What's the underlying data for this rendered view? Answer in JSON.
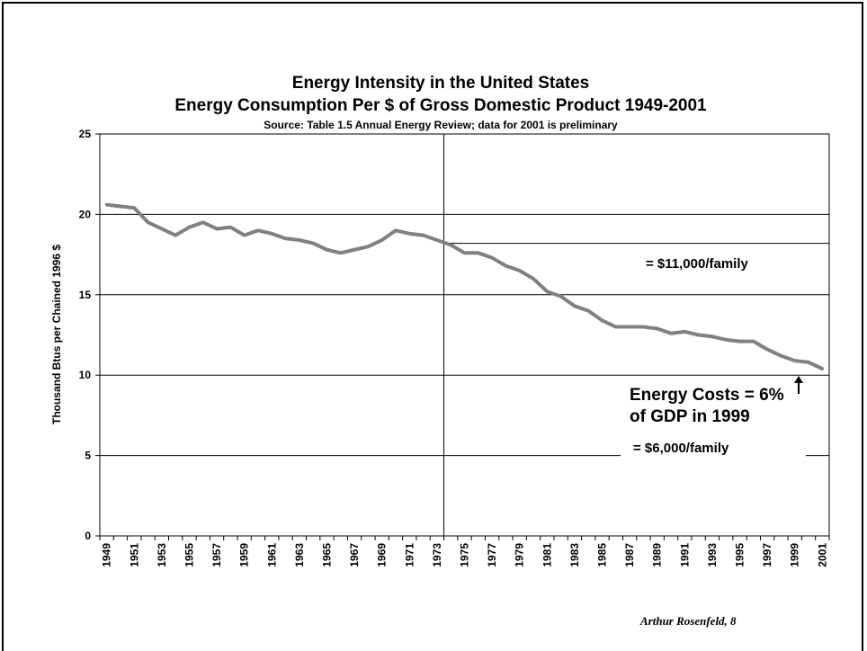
{
  "chart_data": {
    "type": "line",
    "title": "Energy Intensity in the United States",
    "subtitle": "Energy Consumption Per $ of Gross Domestic Product 1949-2001",
    "source": "Source: Table 1.5 Annual Energy Review; data for 2001 is preliminary",
    "xlabel": "",
    "ylabel": "Thousand Btus per Chained 1996 $",
    "ylim": [
      0,
      25
    ],
    "yticks": [
      "0",
      "5",
      "10",
      "15",
      "20",
      "25"
    ],
    "xticks": [
      "1949",
      "1951",
      "1953",
      "1955",
      "1957",
      "1959",
      "1961",
      "1963",
      "1965",
      "1967",
      "1969",
      "1971",
      "1973",
      "1975",
      "1977",
      "1979",
      "1981",
      "1983",
      "1985",
      "1987",
      "1989",
      "1991",
      "1993",
      "1995",
      "1997",
      "1999",
      "2001"
    ],
    "grid": true,
    "x": [
      1949,
      1950,
      1951,
      1952,
      1953,
      1954,
      1955,
      1956,
      1957,
      1958,
      1959,
      1960,
      1961,
      1962,
      1963,
      1964,
      1965,
      1966,
      1967,
      1968,
      1969,
      1970,
      1971,
      1972,
      1973,
      1974,
      1975,
      1976,
      1977,
      1978,
      1979,
      1980,
      1981,
      1982,
      1983,
      1984,
      1985,
      1986,
      1987,
      1988,
      1989,
      1990,
      1991,
      1992,
      1993,
      1994,
      1995,
      1996,
      1997,
      1998,
      1999,
      2000,
      2001
    ],
    "series": [
      {
        "values": [
          20.6,
          20.5,
          20.4,
          19.5,
          19.1,
          18.7,
          19.2,
          19.5,
          19.1,
          19.2,
          18.7,
          19.0,
          18.8,
          18.5,
          18.4,
          18.2,
          17.8,
          17.6,
          17.8,
          18.0,
          18.4,
          19.0,
          18.8,
          18.7,
          18.4,
          18.1,
          17.6,
          17.6,
          17.3,
          16.8,
          16.5,
          16.0,
          15.2,
          14.9,
          14.3,
          14.0,
          13.4,
          13.0,
          13.0,
          13.0,
          12.9,
          12.6,
          12.7,
          12.5,
          12.4,
          12.2,
          12.1,
          12.1,
          11.6,
          11.2,
          10.9,
          10.8,
          10.4
        ],
        "color": "#808080"
      }
    ],
    "annotations": {
      "family_high": "= $11,000/family",
      "energy_costs_line1": "Energy Costs = 6%",
      "energy_costs_line2": "of GDP in 1999",
      "family_low": "= $6,000/family"
    },
    "credit": "Arthur Rosenfeld, 8"
  }
}
